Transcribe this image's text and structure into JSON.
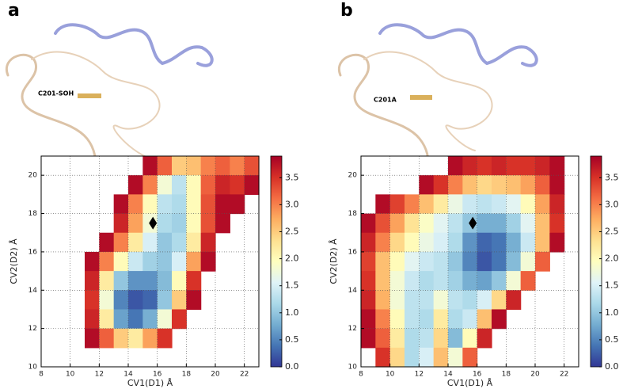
{
  "chart_data": [
    {
      "type": "contour",
      "panel_label": "a",
      "annotation": "C201-SOH",
      "xlabel": "CV1(D1) Å",
      "ylabel": "CV2(D2) Å",
      "xlim": [
        8,
        23
      ],
      "ylim": [
        10,
        21
      ],
      "xticks": [
        8,
        10,
        12,
        14,
        16,
        18,
        20,
        22
      ],
      "yticks": [
        10,
        12,
        14,
        16,
        18,
        20
      ],
      "clim": [
        0,
        3.9
      ],
      "cticks": [
        {
          "value": 0,
          "label": "0.0"
        },
        {
          "value": 0.5,
          "label": "0.5"
        },
        {
          "value": 1,
          "label": "1.0"
        },
        {
          "value": 1.5,
          "label": "1.5"
        },
        {
          "value": 2,
          "label": "2.0"
        },
        {
          "value": 2.5,
          "label": "2.5"
        },
        {
          "value": 3,
          "label": "3.0"
        },
        {
          "value": 3.5,
          "label": "3.5"
        }
      ],
      "grid": true,
      "colormap": [
        "#313695",
        "#4575b4",
        "#74add1",
        "#abd9e9",
        "#e0f3f8",
        "#ffffbf",
        "#fee090",
        "#fdae61",
        "#f46d43",
        "#d73027",
        "#a50026"
      ],
      "marker": {
        "x": 15.7,
        "y": 17.5,
        "color": "#000000"
      },
      "x": [
        8.5,
        9.5,
        10.5,
        11.5,
        12.5,
        13.5,
        14.5,
        15.5,
        16.5,
        17.5,
        18.5,
        19.5,
        20.5,
        21.5,
        22.5
      ],
      "y": [
        20.5,
        19.5,
        18.5,
        17.5,
        16.5,
        15.5,
        14.5,
        13.5,
        12.5,
        11.5,
        10.5
      ],
      "z": [
        [
          null,
          null,
          null,
          null,
          null,
          null,
          null,
          3.8,
          3.2,
          2.5,
          2.6,
          3.0,
          3.2,
          3.0,
          3.3
        ],
        [
          null,
          null,
          null,
          null,
          null,
          null,
          3.8,
          3.0,
          1.8,
          1.3,
          2.0,
          3.2,
          3.6,
          3.5,
          3.8
        ],
        [
          null,
          null,
          null,
          null,
          null,
          3.8,
          3.0,
          2.0,
          1.3,
          1.2,
          2.0,
          3.3,
          3.8,
          3.8,
          null
        ],
        [
          null,
          null,
          null,
          null,
          null,
          3.6,
          2.8,
          1.8,
          1.2,
          1.1,
          2.0,
          3.3,
          3.8,
          null,
          null
        ],
        [
          null,
          null,
          null,
          null,
          3.8,
          3.0,
          2.2,
          1.5,
          1.0,
          1.2,
          2.2,
          3.6,
          null,
          null,
          null
        ],
        [
          null,
          null,
          null,
          3.8,
          3.0,
          2.0,
          1.4,
          1.1,
          1.0,
          1.5,
          2.8,
          3.8,
          null,
          null,
          null
        ],
        [
          null,
          null,
          null,
          3.6,
          2.2,
          1.0,
          0.6,
          0.6,
          0.9,
          2.0,
          3.5,
          null,
          null,
          null,
          null
        ],
        [
          null,
          null,
          null,
          3.5,
          1.8,
          0.5,
          0.2,
          0.3,
          1.0,
          2.5,
          3.8,
          null,
          null,
          null,
          null
        ],
        [
          null,
          null,
          null,
          3.6,
          2.2,
          0.7,
          0.4,
          0.8,
          1.8,
          3.5,
          null,
          null,
          null,
          null,
          null
        ],
        [
          null,
          null,
          null,
          3.8,
          3.2,
          2.5,
          2.2,
          2.8,
          3.5,
          null,
          null,
          null,
          null,
          null,
          null
        ],
        [
          null,
          null,
          null,
          null,
          null,
          null,
          null,
          null,
          null,
          null,
          null,
          null,
          null,
          null,
          null
        ]
      ]
    },
    {
      "type": "contour",
      "panel_label": "b",
      "annotation": "C201A",
      "xlabel": "CV1(D1) Å",
      "ylabel": "CV2(D2) Å",
      "xlim": [
        8,
        23
      ],
      "ylim": [
        10,
        21
      ],
      "xticks": [
        8,
        10,
        12,
        14,
        16,
        18,
        20,
        22
      ],
      "yticks": [
        10,
        12,
        14,
        16,
        18,
        20
      ],
      "clim": [
        0,
        3.9
      ],
      "cticks": [
        {
          "value": 0,
          "label": "0.0"
        },
        {
          "value": 0.5,
          "label": "0.5"
        },
        {
          "value": 1,
          "label": "1.0"
        },
        {
          "value": 1.5,
          "label": "1.5"
        },
        {
          "value": 2,
          "label": "2.0"
        },
        {
          "value": 2.5,
          "label": "2.5"
        },
        {
          "value": 3,
          "label": "3.0"
        },
        {
          "value": 3.5,
          "label": "3.5"
        }
      ],
      "grid": true,
      "colormap": [
        "#313695",
        "#4575b4",
        "#74add1",
        "#abd9e9",
        "#e0f3f8",
        "#ffffbf",
        "#fee090",
        "#fdae61",
        "#f46d43",
        "#d73027",
        "#a50026"
      ],
      "marker": {
        "x": 15.7,
        "y": 17.5,
        "color": "#000000"
      },
      "x": [
        8.5,
        9.5,
        10.5,
        11.5,
        12.5,
        13.5,
        14.5,
        15.5,
        16.5,
        17.5,
        18.5,
        19.5,
        20.5,
        21.5,
        22.5
      ],
      "y": [
        20.5,
        19.5,
        18.5,
        17.5,
        16.5,
        15.5,
        14.5,
        13.5,
        12.5,
        11.5,
        10.5
      ],
      "z": [
        [
          null,
          null,
          null,
          null,
          null,
          null,
          3.8,
          3.6,
          3.5,
          3.6,
          3.5,
          3.5,
          3.6,
          3.8,
          null
        ],
        [
          null,
          null,
          null,
          null,
          3.8,
          3.5,
          3.0,
          2.6,
          2.4,
          2.5,
          2.6,
          2.8,
          3.2,
          3.8,
          null
        ],
        [
          null,
          3.8,
          3.4,
          3.0,
          2.6,
          2.2,
          1.7,
          1.4,
          1.3,
          1.4,
          1.6,
          2.0,
          2.8,
          3.6,
          null
        ],
        [
          3.8,
          3.3,
          2.8,
          2.3,
          1.9,
          1.6,
          1.3,
          1.0,
          0.8,
          0.8,
          1.1,
          1.6,
          2.6,
          3.5,
          null
        ],
        [
          3.6,
          3.0,
          2.4,
          2.0,
          1.7,
          1.5,
          1.2,
          0.6,
          0.3,
          0.4,
          0.8,
          1.4,
          2.6,
          3.8,
          null
        ],
        [
          3.4,
          2.6,
          2.0,
          1.6,
          1.4,
          1.3,
          1.0,
          0.5,
          0.2,
          0.4,
          0.9,
          1.8,
          3.2,
          null,
          null
        ],
        [
          3.5,
          2.6,
          1.8,
          1.4,
          1.2,
          1.3,
          1.1,
          0.8,
          0.7,
          1.0,
          1.8,
          3.2,
          null,
          null,
          null
        ],
        [
          3.6,
          2.7,
          1.8,
          1.3,
          1.3,
          1.8,
          1.3,
          1.2,
          1.5,
          2.4,
          3.6,
          null,
          null,
          null,
          null
        ],
        [
          3.8,
          3.0,
          2.0,
          1.3,
          1.2,
          2.2,
          1.2,
          1.4,
          2.6,
          3.8,
          null,
          null,
          null,
          null,
          null
        ],
        [
          3.8,
          3.2,
          2.2,
          1.2,
          1.3,
          2.4,
          0.9,
          2.0,
          3.6,
          null,
          null,
          null,
          null,
          null,
          null
        ],
        [
          null,
          3.5,
          2.4,
          1.2,
          1.5,
          2.6,
          1.8,
          3.2,
          null,
          null,
          null,
          null,
          null,
          null,
          null
        ]
      ]
    }
  ]
}
